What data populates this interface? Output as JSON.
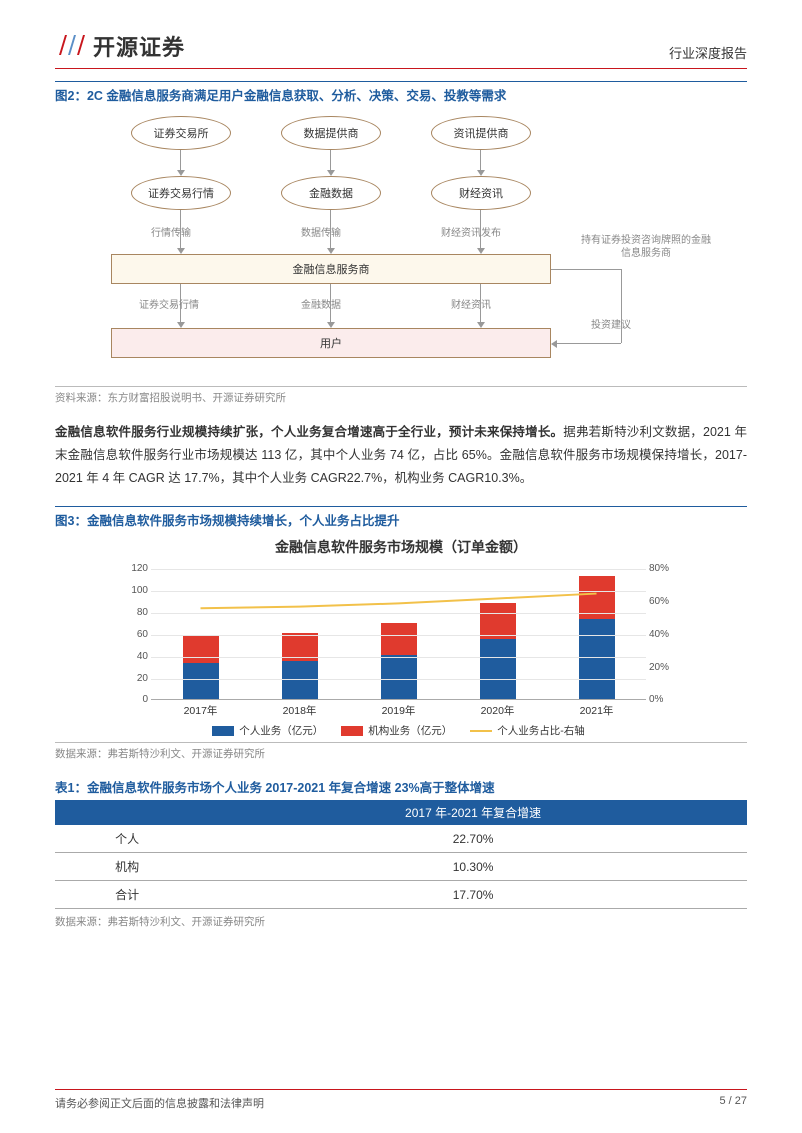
{
  "header": {
    "logo_text": "开源证券",
    "doc_type": "行业深度报告"
  },
  "fig2": {
    "title": "图2：2C 金融信息服务商满足用户金融信息获取、分析、决策、交易、投教等需求",
    "nodes": {
      "top1": "证券交易所",
      "top2": "数据提供商",
      "top3": "资讯提供商",
      "mid1": "证券交易行情",
      "mid2": "金融数据",
      "mid3": "财经资讯",
      "lbl1": "行情传输",
      "lbl2": "数据传输",
      "lbl3": "财经资讯发布",
      "svc": "金融信息服务商",
      "b1": "证券交易行情",
      "b2": "金融数据",
      "b3": "财经资讯",
      "user": "用户",
      "side1": "持有证券投资咨询牌照的金融信息服务商",
      "side2": "投资建议"
    },
    "source": "资料来源：东方财富招股说明书、开源证券研究所",
    "colors": {
      "border": "#a88660",
      "yellow": "#fdf8ec",
      "pink": "#fbecec",
      "arrow": "#999999"
    }
  },
  "para": {
    "bold": "金融信息软件服务行业规模持续扩张，个人业务复合增速高于全行业，预计未来保持增长。",
    "rest": "据弗若斯特沙利文数据，2021 年末金融信息软件服务行业市场规模达 113 亿，其中个人业务 74 亿，占比 65%。金融信息软件服务市场规模保持增长，2017-2021 年 4 年 CAGR 达 17.7%，其中个人业务 CAGR22.7%，机构业务 CAGR10.3%。"
  },
  "fig3": {
    "title": "图3：金融信息软件服务市场规模持续增长，个人业务占比提升",
    "chart_title": "金融信息软件服务市场规模（订单金额）",
    "type": "stacked_bar_with_line",
    "categories": [
      "2017年",
      "2018年",
      "2019年",
      "2020年",
      "2021年"
    ],
    "series": {
      "personal": {
        "label": "个人业务（亿元）",
        "color": "#1f5c9e",
        "values": [
          33,
          35,
          41,
          55,
          74
        ]
      },
      "inst": {
        "label": "机构业务（亿元）",
        "color": "#e03a2e",
        "values": [
          26,
          26,
          29,
          33,
          39
        ]
      },
      "ratio": {
        "label": "个人业务占比-右轴",
        "color": "#f2c14a",
        "values": [
          56,
          57,
          59,
          62,
          65
        ]
      }
    },
    "y_left": {
      "min": 0,
      "max": 120,
      "step": 20
    },
    "y_right": {
      "min": 0,
      "max": 80,
      "step": 20,
      "suffix": "%"
    },
    "background": "#ffffff",
    "grid_color": "#e6e6e6",
    "source": "数据来源：弗若斯特沙利文、开源证券研究所"
  },
  "table1": {
    "title": "表1：金融信息软件服务市场个人业务 2017-2021 年复合增速 23%高于整体增速",
    "header": [
      "",
      "2017 年-2021 年复合增速"
    ],
    "rows": [
      [
        "个人",
        "22.70%"
      ],
      [
        "机构",
        "10.30%"
      ],
      [
        "合计",
        "17.70%"
      ]
    ],
    "header_bg": "#1f5c9e",
    "header_fg": "#ffffff",
    "source": "数据来源：弗若斯特沙利文、开源证券研究所"
  },
  "footer": {
    "left": "请务必参阅正文后面的信息披露和法律声明",
    "right": "5 / 27"
  }
}
